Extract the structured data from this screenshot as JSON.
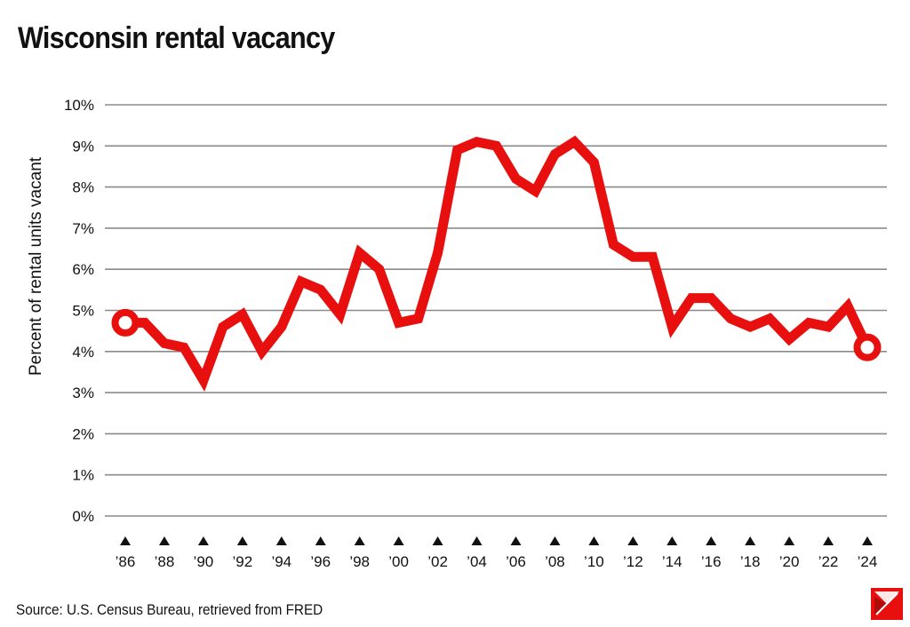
{
  "chart_data": {
    "type": "line",
    "title": "Wisconsin rental vacancy",
    "ylabel": "Percent of rental units vacant",
    "xlabel": "",
    "ylim": [
      0,
      10
    ],
    "xlim": [
      1986,
      2024
    ],
    "yticks": [
      "0%",
      "1%",
      "2%",
      "3%",
      "4%",
      "5%",
      "6%",
      "7%",
      "8%",
      "9%",
      "10%"
    ],
    "xticks": [
      {
        "year": 1986,
        "label": "’86"
      },
      {
        "year": 1988,
        "label": "’88"
      },
      {
        "year": 1990,
        "label": "’90"
      },
      {
        "year": 1992,
        "label": "’92"
      },
      {
        "year": 1994,
        "label": "’94"
      },
      {
        "year": 1996,
        "label": "’96"
      },
      {
        "year": 1998,
        "label": "’98"
      },
      {
        "year": 2000,
        "label": "’00"
      },
      {
        "year": 2002,
        "label": "’02"
      },
      {
        "year": 2004,
        "label": "’04"
      },
      {
        "year": 2006,
        "label": "’06"
      },
      {
        "year": 2008,
        "label": "’08"
      },
      {
        "year": 2010,
        "label": "’10"
      },
      {
        "year": 2012,
        "label": "’12"
      },
      {
        "year": 2014,
        "label": "’14"
      },
      {
        "year": 2016,
        "label": "’16"
      },
      {
        "year": 2018,
        "label": "’18"
      },
      {
        "year": 2020,
        "label": "’20"
      },
      {
        "year": 2022,
        "label": "’22"
      },
      {
        "year": 2024,
        "label": "’24"
      }
    ],
    "grid": true,
    "x": [
      1986,
      1987,
      1988,
      1989,
      1990,
      1991,
      1992,
      1993,
      1994,
      1995,
      1996,
      1997,
      1998,
      1999,
      2000,
      2001,
      2002,
      2003,
      2004,
      2005,
      2006,
      2007,
      2008,
      2009,
      2010,
      2011,
      2012,
      2013,
      2014,
      2015,
      2016,
      2017,
      2018,
      2019,
      2020,
      2021,
      2022,
      2023,
      2024
    ],
    "series": [
      {
        "values": [
          4.7,
          4.7,
          4.2,
          4.1,
          3.3,
          4.6,
          4.9,
          4.0,
          4.6,
          5.7,
          5.5,
          4.9,
          6.4,
          6.0,
          4.7,
          4.8,
          6.4,
          8.9,
          9.1,
          9.0,
          8.2,
          7.9,
          8.8,
          9.1,
          8.6,
          6.6,
          6.3,
          6.3,
          4.6,
          5.3,
          5.3,
          4.8,
          4.6,
          4.8,
          4.3,
          4.7,
          4.6,
          5.1,
          4.1
        ],
        "color": "#e8100e"
      }
    ],
    "grid_color": "#8a8a8a",
    "source": "Source: U.S. Census Bureau, retrieved from FRED"
  }
}
